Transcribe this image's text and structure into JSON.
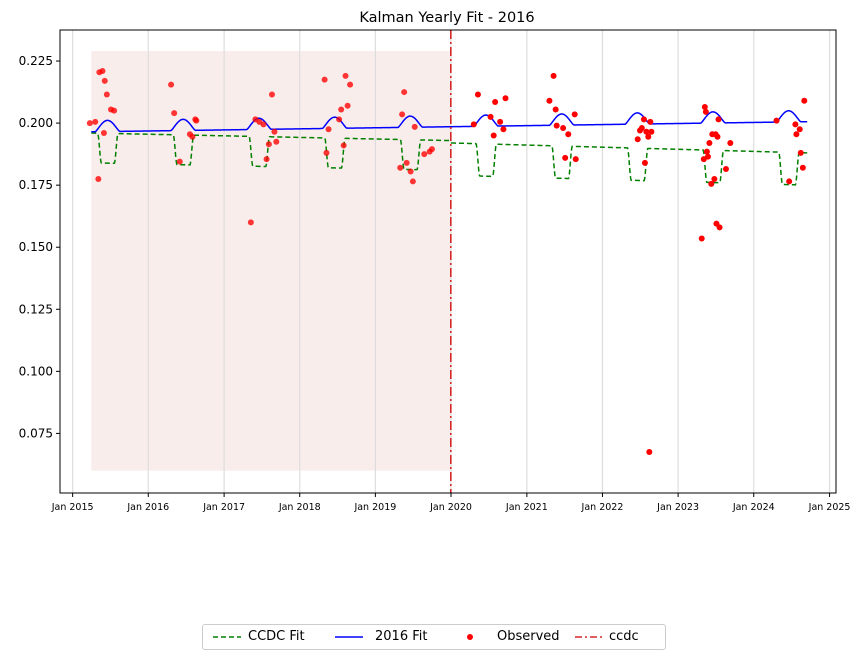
{
  "chart_data": {
    "type": "line",
    "title": "Kalman Yearly Fit - 2016",
    "xlabel": "",
    "ylabel": "",
    "xlim": [
      "2014-11-01",
      "2025-02-01"
    ],
    "ylim": [
      0.051,
      0.2375
    ],
    "x_ticks": [
      "2015-01-01",
      "2016-01-01",
      "2017-01-01",
      "2018-01-01",
      "2019-01-01",
      "2020-01-01",
      "2021-01-01",
      "2022-01-01",
      "2023-01-01",
      "2024-01-01",
      "2025-01-01"
    ],
    "x_tick_labels": [
      "Jan 2015",
      "Jan 2016",
      "Jan 2017",
      "Jan 2018",
      "Jan 2019",
      "Jan 2020",
      "Jan 2021",
      "Jan 2022",
      "Jan 2023",
      "Jan 2024",
      "Jan 2025"
    ],
    "y_ticks": [
      0.075,
      0.1,
      0.125,
      0.15,
      0.175,
      0.2,
      0.225
    ],
    "y_tick_labels": [
      "0.075",
      "0.100",
      "0.125",
      "0.150",
      "0.175",
      "0.200",
      "0.225"
    ],
    "grid": "vertical",
    "shaded_region": {
      "x": [
        "2015-04-01",
        "2019-12-31"
      ],
      "y": [
        0.06,
        0.229
      ],
      "color": "#f7e6e3"
    },
    "vline": {
      "x": "2019-12-31",
      "color": "#d62728",
      "style": "dashdot",
      "name": "ccdc"
    },
    "series": [
      {
        "name": "CCDC Fit",
        "color": "#008000",
        "style": "dashed",
        "segments": [
          {
            "start": "2015-04-01",
            "end": "2019-12-31",
            "base": 0.196,
            "slope": -0.00064,
            "dip": 0.012,
            "dip_start": 0.33,
            "dip_end": 0.6
          },
          {
            "start": "2020-01-01",
            "end": "2024-09-15",
            "base": 0.192,
            "slope": -0.00085,
            "dip": 0.013,
            "dip_start": 0.33,
            "dip_end": 0.6
          }
        ]
      },
      {
        "name": "2016 Fit",
        "color": "#0000ff",
        "style": "solid",
        "segments": [
          {
            "start": "2015-04-01",
            "end": "2024-09-15",
            "base": 0.1965,
            "slope": 0.00043,
            "bump": 0.0045,
            "bump_start": 0.3,
            "bump_end": 0.62
          }
        ]
      }
    ],
    "observed": {
      "name": "Observed",
      "color": "#ff0000",
      "points": [
        [
          "2015-03-25",
          0.2
        ],
        [
          "2015-04-20",
          0.2005
        ],
        [
          "2015-05-05",
          0.1775
        ],
        [
          "2015-05-10",
          0.2205
        ],
        [
          "2015-05-25",
          0.221
        ],
        [
          "2015-06-01",
          0.196
        ],
        [
          "2015-06-05",
          0.217
        ],
        [
          "2015-06-15",
          0.2115
        ],
        [
          "2015-07-05",
          0.2055
        ],
        [
          "2015-07-20",
          0.205
        ],
        [
          "2016-04-20",
          0.2155
        ],
        [
          "2016-05-05",
          0.204
        ],
        [
          "2016-06-01",
          0.1845
        ],
        [
          "2016-07-20",
          0.1955
        ],
        [
          "2016-08-01",
          0.1945
        ],
        [
          "2016-08-15",
          0.2015
        ],
        [
          "2016-08-20",
          0.201
        ],
        [
          "2017-05-10",
          0.16
        ],
        [
          "2017-06-01",
          0.2015
        ],
        [
          "2017-06-20",
          0.2005
        ],
        [
          "2017-07-10",
          0.1995
        ],
        [
          "2017-07-25",
          0.1855
        ],
        [
          "2017-08-05",
          0.1915
        ],
        [
          "2017-08-20",
          0.2115
        ],
        [
          "2017-09-01",
          0.1965
        ],
        [
          "2017-09-10",
          0.1925
        ],
        [
          "2018-05-01",
          0.2175
        ],
        [
          "2018-05-10",
          0.188
        ],
        [
          "2018-05-20",
          0.1975
        ],
        [
          "2018-07-10",
          0.2015
        ],
        [
          "2018-07-20",
          0.2055
        ],
        [
          "2018-08-01",
          0.191
        ],
        [
          "2018-08-10",
          0.219
        ],
        [
          "2018-08-20",
          0.207
        ],
        [
          "2018-09-01",
          0.2155
        ],
        [
          "2019-05-01",
          0.182
        ],
        [
          "2019-05-10",
          0.2035
        ],
        [
          "2019-05-20",
          0.2125
        ],
        [
          "2019-06-01",
          0.184
        ],
        [
          "2019-06-20",
          0.1805
        ],
        [
          "2019-07-01",
          0.1765
        ],
        [
          "2019-07-10",
          0.1985
        ],
        [
          "2019-08-25",
          0.1875
        ],
        [
          "2019-09-20",
          0.1885
        ],
        [
          "2019-10-01",
          0.1895
        ],
        [
          "2020-04-20",
          0.1995
        ],
        [
          "2020-05-10",
          0.2115
        ],
        [
          "2020-07-10",
          0.2025
        ],
        [
          "2020-07-25",
          0.195
        ],
        [
          "2020-08-01",
          0.2085
        ],
        [
          "2020-08-25",
          0.2005
        ],
        [
          "2020-09-10",
          0.1975
        ],
        [
          "2020-09-20",
          0.21
        ],
        [
          "2021-04-20",
          0.209
        ],
        [
          "2021-05-10",
          0.219
        ],
        [
          "2021-05-20",
          0.2055
        ],
        [
          "2021-05-25",
          0.199
        ],
        [
          "2021-06-25",
          0.198
        ],
        [
          "2021-07-05",
          0.186
        ],
        [
          "2021-07-20",
          0.1955
        ],
        [
          "2021-08-20",
          0.2035
        ],
        [
          "2021-08-25",
          0.1855
        ],
        [
          "2022-06-20",
          0.1935
        ],
        [
          "2022-07-01",
          0.197
        ],
        [
          "2022-07-10",
          0.198
        ],
        [
          "2022-07-20",
          0.2015
        ],
        [
          "2022-07-25",
          0.184
        ],
        [
          "2022-08-01",
          0.1965
        ],
        [
          "2022-08-10",
          0.1945
        ],
        [
          "2022-08-15",
          0.0675
        ],
        [
          "2022-08-20",
          0.2005
        ],
        [
          "2022-08-25",
          0.1965
        ],
        [
          "2023-04-25",
          0.1535
        ],
        [
          "2023-05-05",
          0.1855
        ],
        [
          "2023-05-10",
          0.2065
        ],
        [
          "2023-05-15",
          0.2045
        ],
        [
          "2023-05-20",
          0.1885
        ],
        [
          "2023-05-25",
          0.1865
        ],
        [
          "2023-06-01",
          0.192
        ],
        [
          "2023-06-10",
          0.1755
        ],
        [
          "2023-06-15",
          0.1955
        ],
        [
          "2023-06-25",
          0.1775
        ],
        [
          "2023-07-01",
          0.1955
        ],
        [
          "2023-07-05",
          0.1595
        ],
        [
          "2023-07-10",
          0.1945
        ],
        [
          "2023-07-15",
          0.2015
        ],
        [
          "2023-07-20",
          0.158
        ],
        [
          "2023-08-20",
          0.1815
        ],
        [
          "2023-09-10",
          0.192
        ],
        [
          "2024-04-20",
          0.201
        ],
        [
          "2024-06-20",
          0.1765
        ],
        [
          "2024-07-20",
          0.1995
        ],
        [
          "2024-07-25",
          0.1955
        ],
        [
          "2024-08-10",
          0.1975
        ],
        [
          "2024-08-15",
          0.188
        ],
        [
          "2024-08-25",
          0.182
        ],
        [
          "2024-09-01",
          0.209
        ]
      ]
    }
  },
  "legend": {
    "items": [
      {
        "label": "CCDC Fit",
        "color": "#008000",
        "style": "dashed"
      },
      {
        "label": "2016 Fit",
        "color": "#0000ff",
        "style": "solid"
      },
      {
        "label": "Observed",
        "color": "#ff0000",
        "style": "marker"
      },
      {
        "label": "ccdc",
        "color": "#d62728",
        "style": "dashdot"
      }
    ]
  }
}
